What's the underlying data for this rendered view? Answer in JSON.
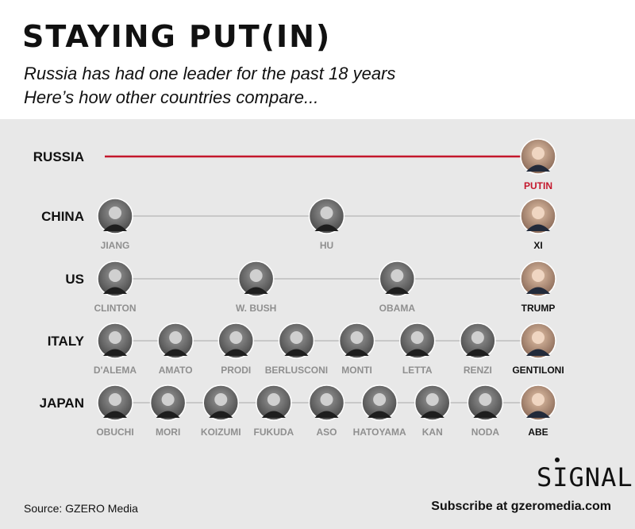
{
  "header": {
    "title": "STAYING PUT(IN)",
    "subtitle_line1": "Russia has had one leader for the past 18 years",
    "subtitle_line2": "Here’s how other countries compare..."
  },
  "footer": {
    "source": "Source: GZERO Media",
    "subscribe": "Subscribe at gzeromedia.com",
    "logo": "SIGNAL"
  },
  "colors": {
    "panel_bg": "#e8e8e8",
    "russia_line": "#c4172c",
    "connector_line": "#c8c8c8",
    "past_leader_label": "#8f8f8f",
    "current_leader_label": "#111111"
  },
  "chart_data": {
    "type": "timeline",
    "x_order": "chronological, left to right; last leader in each row is current",
    "countries": [
      {
        "name": "RUSSIA",
        "leaders": [
          {
            "name": "PUTIN",
            "current": true
          }
        ]
      },
      {
        "name": "CHINA",
        "leaders": [
          {
            "name": "JIANG",
            "current": false
          },
          {
            "name": "HU",
            "current": false
          },
          {
            "name": "XI",
            "current": true
          }
        ]
      },
      {
        "name": "US",
        "leaders": [
          {
            "name": "CLINTON",
            "current": false
          },
          {
            "name": "W. BUSH",
            "current": false
          },
          {
            "name": "OBAMA",
            "current": false
          },
          {
            "name": "TRUMP",
            "current": true
          }
        ]
      },
      {
        "name": "ITALY",
        "leaders": [
          {
            "name": "D'ALEMA",
            "current": false
          },
          {
            "name": "AMATO",
            "current": false
          },
          {
            "name": "PRODI",
            "current": false
          },
          {
            "name": "BERLUSCONI",
            "current": false
          },
          {
            "name": "MONTI",
            "current": false
          },
          {
            "name": "LETTA",
            "current": false
          },
          {
            "name": "RENZI",
            "current": false
          },
          {
            "name": "GENTILONI",
            "current": true
          }
        ]
      },
      {
        "name": "JAPAN",
        "leaders": [
          {
            "name": "OBUCHI",
            "current": false
          },
          {
            "name": "MORI",
            "current": false
          },
          {
            "name": "KOIZUMI",
            "current": false
          },
          {
            "name": "FUKUDA",
            "current": false
          },
          {
            "name": "ASO",
            "current": false
          },
          {
            "name": "HATOYAMA",
            "current": false
          },
          {
            "name": "KAN",
            "current": false
          },
          {
            "name": "NODA",
            "current": false
          },
          {
            "name": "ABE",
            "current": true
          }
        ]
      }
    ]
  }
}
